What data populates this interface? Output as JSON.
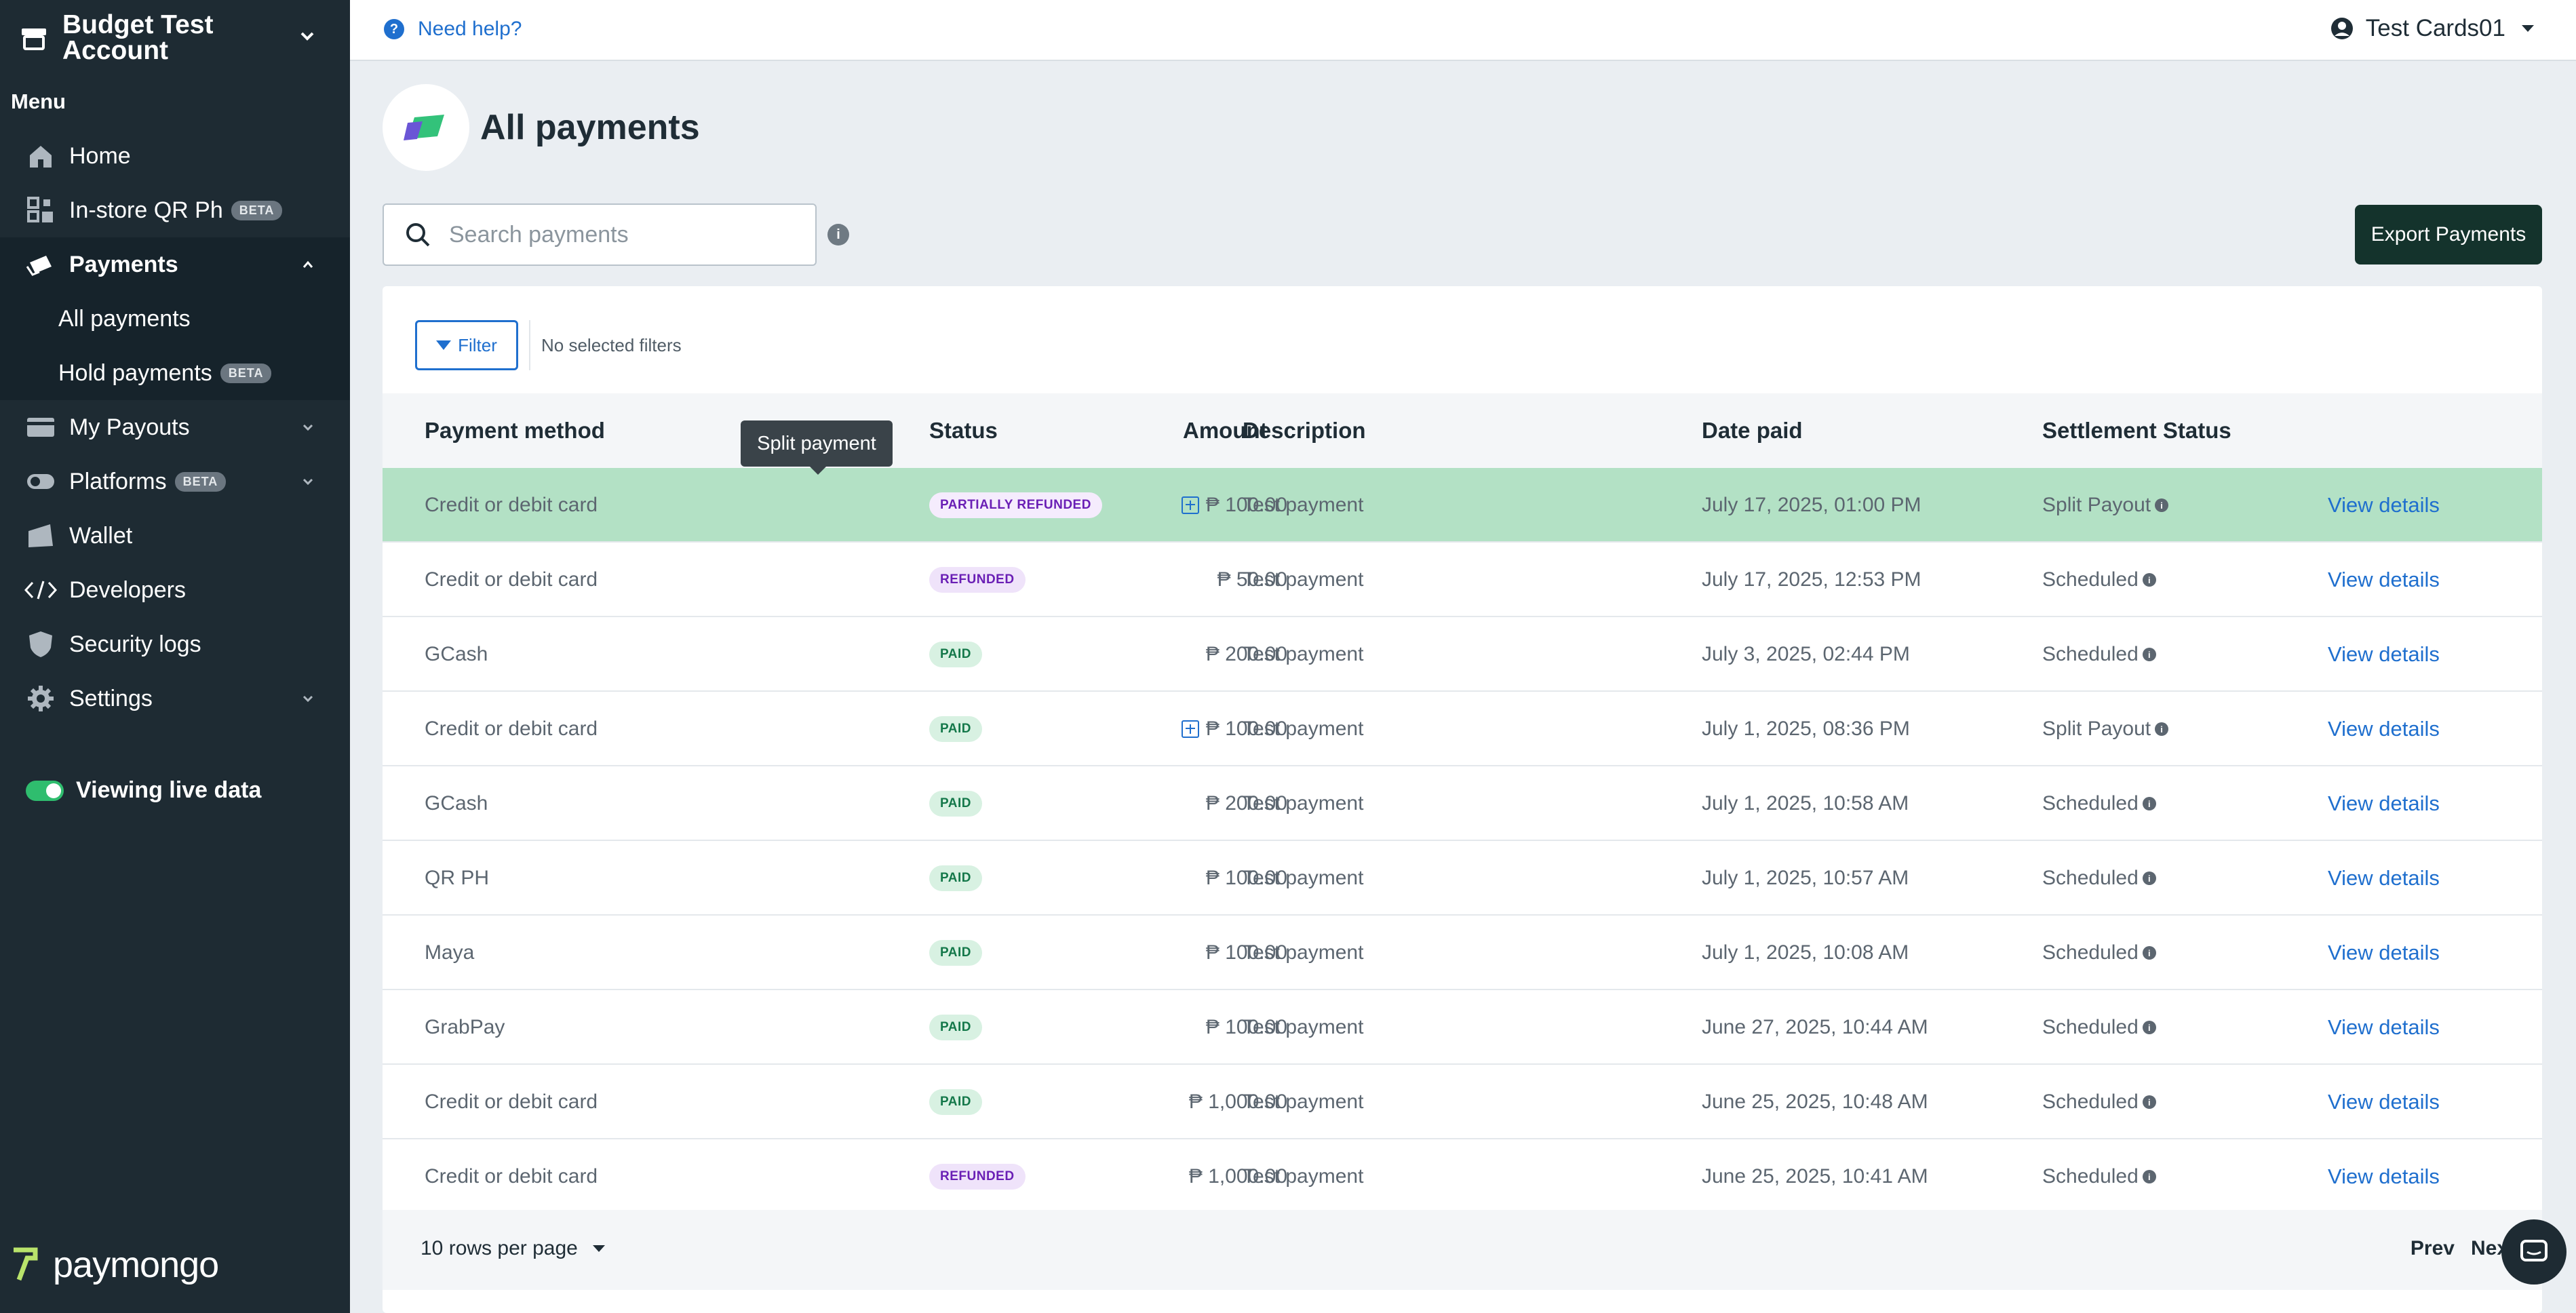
{
  "sidebar": {
    "account_name": "Budget Test Account",
    "menu_label": "Menu",
    "items": [
      {
        "label": "Home",
        "icon": "home-icon"
      },
      {
        "label": "In-store QR Ph",
        "icon": "qr-icon",
        "badge": "BETA"
      },
      {
        "label": "Payments",
        "icon": "payments-icon"
      },
      {
        "label": "My Payouts",
        "icon": "payouts-icon"
      },
      {
        "label": "Platforms",
        "icon": "platforms-icon",
        "badge": "BETA"
      },
      {
        "label": "Wallet",
        "icon": "wallet-icon"
      },
      {
        "label": "Developers",
        "icon": "code-icon"
      },
      {
        "label": "Security logs",
        "icon": "shield-icon"
      },
      {
        "label": "Settings",
        "icon": "gear-icon"
      }
    ],
    "payments_sub": [
      {
        "label": "All payments"
      },
      {
        "label": "Hold payments",
        "badge": "BETA"
      }
    ],
    "live_label": "Viewing live data",
    "brand": "paymongo"
  },
  "topbar": {
    "help": "Need help?",
    "user": "Test Cards01"
  },
  "page": {
    "title": "All payments",
    "search_placeholder": "Search payments",
    "export": "Export Payments",
    "filter": "Filter",
    "filter_status": "No selected filters"
  },
  "tooltip": "Split payment",
  "table": {
    "headers": {
      "method": "Payment method",
      "amount": "Amount",
      "status": "Status",
      "description": "Description",
      "date": "Date paid",
      "settlement": "Settlement Status"
    },
    "rows": [
      {
        "method": "Credit or debit card",
        "amount": "₱ 100.00",
        "split": true,
        "status": "PARTIALLY REFUNDED",
        "description": "Test payment",
        "date": "July 17, 2025, 01:00 PM",
        "settlement": "Split Payout",
        "action": "View details"
      },
      {
        "method": "Credit or debit card",
        "amount": "₱ 50.00",
        "split": false,
        "status": "REFUNDED",
        "description": "Test payment",
        "date": "July 17, 2025, 12:53 PM",
        "settlement": "Scheduled",
        "action": "View details"
      },
      {
        "method": "GCash",
        "amount": "₱ 200.00",
        "split": false,
        "status": "PAID",
        "description": "Test payment",
        "date": "July 3, 2025, 02:44 PM",
        "settlement": "Scheduled",
        "action": "View details"
      },
      {
        "method": "Credit or debit card",
        "amount": "₱ 100.00",
        "split": true,
        "status": "PAID",
        "description": "Test payment",
        "date": "July 1, 2025, 08:36 PM",
        "settlement": "Split Payout",
        "action": "View details"
      },
      {
        "method": "GCash",
        "amount": "₱ 200.00",
        "split": false,
        "status": "PAID",
        "description": "Test payment",
        "date": "July 1, 2025, 10:58 AM",
        "settlement": "Scheduled",
        "action": "View details"
      },
      {
        "method": "QR PH",
        "amount": "₱ 100.00",
        "split": false,
        "status": "PAID",
        "description": "Test payment",
        "date": "July 1, 2025, 10:57 AM",
        "settlement": "Scheduled",
        "action": "View details"
      },
      {
        "method": "Maya",
        "amount": "₱ 100.00",
        "split": false,
        "status": "PAID",
        "description": "Test payment",
        "date": "July 1, 2025, 10:08 AM",
        "settlement": "Scheduled",
        "action": "View details"
      },
      {
        "method": "GrabPay",
        "amount": "₱ 100.00",
        "split": false,
        "status": "PAID",
        "description": "Test payment",
        "date": "June 27, 2025, 10:44 AM",
        "settlement": "Scheduled",
        "action": "View details"
      },
      {
        "method": "Credit or debit card",
        "amount": "₱ 1,000.00",
        "split": false,
        "status": "PAID",
        "description": "Test payment",
        "date": "June 25, 2025, 10:48 AM",
        "settlement": "Scheduled",
        "action": "View details"
      },
      {
        "method": "Credit or debit card",
        "amount": "₱ 1,000.00",
        "split": false,
        "status": "REFUNDED",
        "description": "Test payment",
        "date": "June 25, 2025, 10:41 AM",
        "settlement": "Scheduled",
        "action": "View details"
      }
    ],
    "rows_per_page": "10 rows per page",
    "prev": "Prev",
    "next": "Next"
  },
  "colors": {
    "sidebar_bg": "#1e2b33",
    "highlight_row": "#b3e1c5",
    "link": "#1f6fce",
    "export_bg": "#14332c",
    "live_toggle": "#2fbd6e"
  }
}
